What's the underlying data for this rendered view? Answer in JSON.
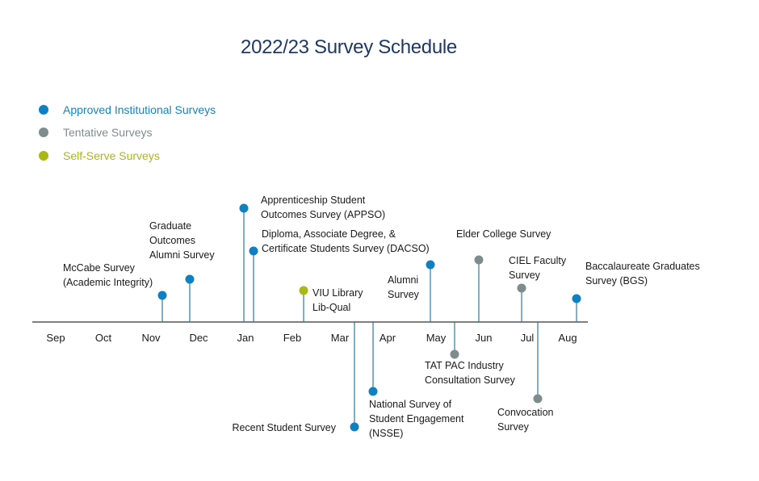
{
  "title": "2022/23 Survey Schedule",
  "legend": [
    {
      "label": "Approved Institutional Surveys",
      "color": "#0f80c1",
      "text_color": "#1583c4"
    },
    {
      "label": "Tentative Surveys",
      "color": "#7f8c8d",
      "text_color": "#7f8c8d"
    },
    {
      "label": "Self-Serve Surveys",
      "color": "#aab716",
      "text_color": "#aab716"
    }
  ],
  "colors": {
    "approved": "#0f80c1",
    "tentative": "#7f8c8d",
    "self_serve": "#aab716",
    "stem": "#2b7a9b",
    "axis": "#333333"
  },
  "months": [
    "Sep",
    "Oct",
    "Nov",
    "Dec",
    "Jan",
    "Feb",
    "Mar",
    "Apr",
    "May",
    "Jun",
    "Jul",
    "Aug"
  ],
  "events": [
    {
      "name": "mccabe-survey",
      "lines": [
        "McCabe Survey",
        "(Academic Integrity)"
      ],
      "category": "approved"
    },
    {
      "name": "graduate-outcomes-alumni-survey",
      "lines": [
        "Graduate",
        "Outcomes",
        "Alumni Survey"
      ],
      "category": "approved"
    },
    {
      "name": "appso-survey",
      "lines": [
        "Apprenticeship Student",
        "Outcomes Survey (APPSO)"
      ],
      "category": "approved"
    },
    {
      "name": "dacso-survey",
      "lines": [
        "Diploma, Associate Degree, &",
        "Certificate Students Survey (DACSO)"
      ],
      "category": "approved"
    },
    {
      "name": "viu-library-libqual",
      "lines": [
        "VIU Library",
        "Lib-Qual"
      ],
      "category": "self_serve"
    },
    {
      "name": "recent-student-survey",
      "lines": [
        "Recent Student Survey"
      ],
      "category": "approved"
    },
    {
      "name": "nsse-survey",
      "lines": [
        "National Survey of",
        "Student Engagement",
        "(NSSE)"
      ],
      "category": "approved"
    },
    {
      "name": "alumni-survey",
      "lines": [
        "Alumni",
        "Survey"
      ],
      "category": "approved"
    },
    {
      "name": "tat-pac-industry-survey",
      "lines": [
        "TAT PAC Industry",
        "Consultation Survey"
      ],
      "category": "tentative"
    },
    {
      "name": "elder-college-survey",
      "lines": [
        "Elder College Survey"
      ],
      "category": "tentative"
    },
    {
      "name": "ciel-faculty-survey",
      "lines": [
        "CIEL Faculty",
        "Survey"
      ],
      "category": "tentative"
    },
    {
      "name": "convocation-survey",
      "lines": [
        "Convocation",
        "Survey"
      ],
      "category": "tentative"
    },
    {
      "name": "baccalaureate-graduates-survey",
      "lines": [
        "Baccalaureate Graduates",
        "Survey (BGS)"
      ],
      "category": "approved"
    }
  ]
}
